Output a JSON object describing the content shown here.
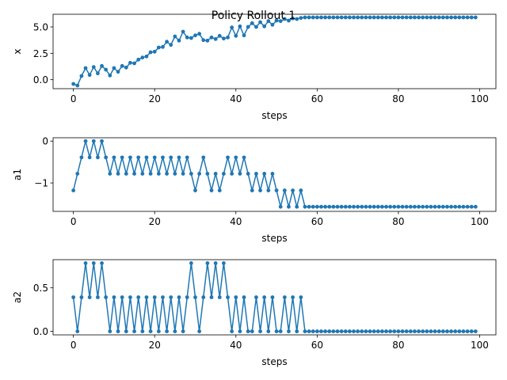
{
  "figure": {
    "title": "Policy Rollout 1",
    "line_color": "#1f77b4"
  },
  "chart_data": [
    {
      "type": "line",
      "xlabel": "steps",
      "ylabel": "x",
      "xlim": [
        -5,
        104
      ],
      "ylim": [
        -0.85,
        6.2
      ],
      "xticks": [
        0,
        20,
        40,
        60,
        80,
        100
      ],
      "yticks": [
        0.0,
        2.5,
        5.0
      ],
      "ytick_labels": [
        "0.0",
        "2.5",
        "5.0"
      ],
      "grid": false,
      "series": [
        {
          "x": [
            0,
            1,
            2,
            3,
            4,
            5,
            6,
            7,
            8,
            9,
            10,
            11,
            12,
            13,
            14,
            15,
            16,
            17,
            18,
            19,
            20,
            21,
            22,
            23,
            24,
            25,
            26,
            27,
            28,
            29,
            30,
            31,
            32,
            33,
            34,
            35,
            36,
            37,
            38,
            39,
            40,
            41,
            42,
            43,
            44,
            45,
            46,
            47,
            48,
            49,
            50,
            51,
            52,
            53,
            54,
            55,
            56,
            57,
            58,
            59,
            60,
            61,
            62,
            63,
            64,
            65,
            66,
            67,
            68,
            69,
            70,
            71,
            72,
            73,
            74,
            75,
            76,
            77,
            78,
            79,
            80,
            81,
            82,
            83,
            84,
            85,
            86,
            87,
            88,
            89,
            90,
            91,
            92,
            93,
            94,
            95,
            96,
            97,
            98,
            99
          ],
          "values": [
            -0.4,
            -0.55,
            0.35,
            1.1,
            0.45,
            1.2,
            0.6,
            1.3,
            0.95,
            0.4,
            1.1,
            0.75,
            1.3,
            1.15,
            1.6,
            1.55,
            1.9,
            2.1,
            2.2,
            2.6,
            2.65,
            3.05,
            3.1,
            3.6,
            3.3,
            4.1,
            3.7,
            4.55,
            4.0,
            3.95,
            4.2,
            4.35,
            3.75,
            3.7,
            4.0,
            3.85,
            4.15,
            3.9,
            4.0,
            4.95,
            4.15,
            5.05,
            4.2,
            5.0,
            5.35,
            5.0,
            5.45,
            5.05,
            5.55,
            5.2,
            5.6,
            5.55,
            5.75,
            5.6,
            5.8,
            5.75,
            5.85,
            5.9,
            5.9,
            5.9,
            5.9,
            5.9,
            5.9,
            5.9,
            5.9,
            5.9,
            5.9,
            5.9,
            5.9,
            5.9,
            5.9,
            5.9,
            5.9,
            5.9,
            5.9,
            5.9,
            5.9,
            5.9,
            5.9,
            5.9,
            5.9,
            5.9,
            5.9,
            5.9,
            5.9,
            5.9,
            5.9,
            5.9,
            5.9,
            5.9,
            5.9,
            5.9,
            5.9,
            5.9,
            5.9,
            5.9,
            5.9,
            5.9,
            5.9,
            5.9
          ]
        }
      ]
    },
    {
      "type": "line",
      "xlabel": "steps",
      "ylabel": "a1",
      "xlim": [
        -5,
        104
      ],
      "ylim": [
        -1.68,
        0.08
      ],
      "xticks": [
        0,
        20,
        40,
        60,
        80,
        100
      ],
      "yticks": [
        -1,
        0
      ],
      "ytick_labels": [
        "−1",
        "0"
      ],
      "grid": false,
      "series": [
        {
          "x": [
            0,
            1,
            2,
            3,
            4,
            5,
            6,
            7,
            8,
            9,
            10,
            11,
            12,
            13,
            14,
            15,
            16,
            17,
            18,
            19,
            20,
            21,
            22,
            23,
            24,
            25,
            26,
            27,
            28,
            29,
            30,
            31,
            32,
            33,
            34,
            35,
            36,
            37,
            38,
            39,
            40,
            41,
            42,
            43,
            44,
            45,
            46,
            47,
            48,
            49,
            50,
            51,
            52,
            53,
            54,
            55,
            56,
            57,
            58,
            59,
            60,
            61,
            62,
            63,
            64,
            65,
            66,
            67,
            68,
            69,
            70,
            71,
            72,
            73,
            74,
            75,
            76,
            77,
            78,
            79,
            80,
            81,
            82,
            83,
            84,
            85,
            86,
            87,
            88,
            89,
            90,
            91,
            92,
            93,
            94,
            95,
            96,
            97,
            98,
            99
          ],
          "values": [
            -1.18,
            -0.78,
            -0.39,
            0.0,
            -0.39,
            0.0,
            -0.39,
            0.0,
            -0.39,
            -0.78,
            -0.39,
            -0.78,
            -0.39,
            -0.78,
            -0.39,
            -0.78,
            -0.39,
            -0.78,
            -0.39,
            -0.78,
            -0.39,
            -0.78,
            -0.39,
            -0.78,
            -0.39,
            -0.78,
            -0.39,
            -0.78,
            -0.39,
            -0.78,
            -1.18,
            -0.78,
            -0.39,
            -0.78,
            -1.18,
            -0.78,
            -1.18,
            -0.78,
            -0.39,
            -0.78,
            -0.39,
            -0.78,
            -0.39,
            -0.78,
            -1.18,
            -0.78,
            -1.18,
            -0.78,
            -1.18,
            -0.78,
            -1.18,
            -1.57,
            -1.18,
            -1.57,
            -1.18,
            -1.57,
            -1.18,
            -1.57,
            -1.57,
            -1.57,
            -1.57,
            -1.57,
            -1.57,
            -1.57,
            -1.57,
            -1.57,
            -1.57,
            -1.57,
            -1.57,
            -1.57,
            -1.57,
            -1.57,
            -1.57,
            -1.57,
            -1.57,
            -1.57,
            -1.57,
            -1.57,
            -1.57,
            -1.57,
            -1.57,
            -1.57,
            -1.57,
            -1.57,
            -1.57,
            -1.57,
            -1.57,
            -1.57,
            -1.57,
            -1.57,
            -1.57,
            -1.57,
            -1.57,
            -1.57,
            -1.57,
            -1.57,
            -1.57,
            -1.57,
            -1.57,
            -1.57
          ]
        }
      ]
    },
    {
      "type": "line",
      "xlabel": "steps",
      "ylabel": "a2",
      "xlim": [
        -5,
        104
      ],
      "ylim": [
        -0.04,
        0.82
      ],
      "xticks": [
        0,
        20,
        40,
        60,
        80,
        100
      ],
      "yticks": [
        0.0,
        0.5
      ],
      "ytick_labels": [
        "0.0",
        "0.5"
      ],
      "grid": false,
      "series": [
        {
          "x": [
            0,
            1,
            2,
            3,
            4,
            5,
            6,
            7,
            8,
            9,
            10,
            11,
            12,
            13,
            14,
            15,
            16,
            17,
            18,
            19,
            20,
            21,
            22,
            23,
            24,
            25,
            26,
            27,
            28,
            29,
            30,
            31,
            32,
            33,
            34,
            35,
            36,
            37,
            38,
            39,
            40,
            41,
            42,
            43,
            44,
            45,
            46,
            47,
            48,
            49,
            50,
            51,
            52,
            53,
            54,
            55,
            56,
            57,
            58,
            59,
            60,
            61,
            62,
            63,
            64,
            65,
            66,
            67,
            68,
            69,
            70,
            71,
            72,
            73,
            74,
            75,
            76,
            77,
            78,
            79,
            80,
            81,
            82,
            83,
            84,
            85,
            86,
            87,
            88,
            89,
            90,
            91,
            92,
            93,
            94,
            95,
            96,
            97,
            98,
            99
          ],
          "values": [
            0.39,
            0.0,
            0.39,
            0.78,
            0.39,
            0.78,
            0.39,
            0.78,
            0.39,
            0.0,
            0.39,
            0.0,
            0.39,
            0.0,
            0.39,
            0.0,
            0.39,
            0.0,
            0.39,
            0.0,
            0.39,
            0.0,
            0.39,
            0.0,
            0.39,
            0.0,
            0.39,
            0.0,
            0.39,
            0.78,
            0.39,
            0.0,
            0.39,
            0.78,
            0.39,
            0.78,
            0.39,
            0.78,
            0.39,
            0.0,
            0.39,
            0.0,
            0.39,
            0.0,
            0.0,
            0.39,
            0.0,
            0.39,
            0.0,
            0.39,
            0.0,
            0.0,
            0.39,
            0.0,
            0.39,
            0.0,
            0.39,
            0.0,
            0.0,
            0.0,
            0.0,
            0.0,
            0.0,
            0.0,
            0.0,
            0.0,
            0.0,
            0.0,
            0.0,
            0.0,
            0.0,
            0.0,
            0.0,
            0.0,
            0.0,
            0.0,
            0.0,
            0.0,
            0.0,
            0.0,
            0.0,
            0.0,
            0.0,
            0.0,
            0.0,
            0.0,
            0.0,
            0.0,
            0.0,
            0.0,
            0.0,
            0.0,
            0.0,
            0.0,
            0.0,
            0.0,
            0.0,
            0.0,
            0.0,
            0.0
          ]
        }
      ]
    }
  ]
}
